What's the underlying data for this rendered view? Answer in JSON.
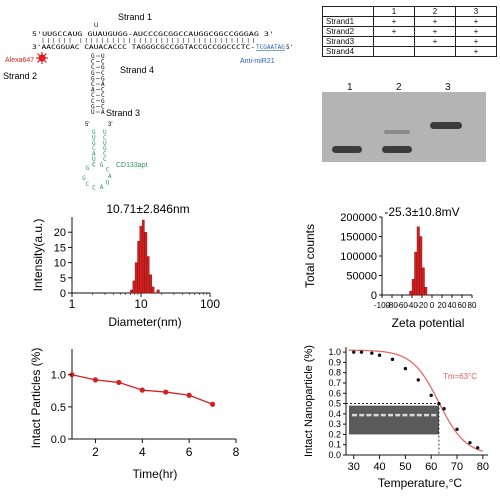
{
  "structure": {
    "strand1_label": "Strand 1",
    "strand2_label": "Strand 2",
    "strand3_label": "Strand 3",
    "strand4_label": "Strand 4",
    "top_seq": "5'UUGCCAUG  GUAUGUGG-AUCCCGCGGCCAUGGCGGCCGGGAG 3'",
    "bottom_seq": "3'AACGGUAC  CAUACACCC TAGGGCGCCGGTACCGCCGGCCCTC-",
    "bottom_link": "TCGAATAG",
    "bottom_end": " 5'",
    "loop_u": "U",
    "dye": "Alexa647",
    "anti_label": "Anti-miR21",
    "aptamer_label": "CD133apt",
    "stem_left": [
      "G",
      "C",
      "C",
      "G",
      "G",
      "C",
      "A",
      "C",
      "C",
      "G",
      "U"
    ],
    "stem_right": [
      "U",
      "C",
      "G",
      "C",
      "G",
      "A",
      "C",
      "C",
      "G",
      "C",
      "A"
    ],
    "apt_loop": [
      "G",
      "C",
      "C",
      "A",
      "U",
      "A",
      "C",
      "G",
      "C",
      "G"
    ],
    "apt_left": [
      "G",
      "U",
      "G",
      "C",
      "A",
      "U",
      "C"
    ],
    "apt_right": [
      "U",
      "C",
      "U",
      "G",
      "C",
      "C"
    ],
    "five_prime": "5'",
    "three_prime": "3'"
  },
  "assembly_table": {
    "headers": [
      "",
      "1",
      "2",
      "3"
    ],
    "rows": [
      {
        "label": "Strand1",
        "cells": [
          "+",
          "+",
          "+"
        ]
      },
      {
        "label": "Strand2",
        "cells": [
          "+",
          "+",
          "+"
        ]
      },
      {
        "label": "Strand3",
        "cells": [
          "",
          "+",
          "+"
        ]
      },
      {
        "label": "Strand4",
        "cells": [
          "",
          "",
          "+"
        ]
      }
    ]
  },
  "gel": {
    "lanes": [
      "1",
      "2",
      "3"
    ]
  },
  "chart_data": [
    {
      "type": "bar",
      "title": "10.71±2.846nm",
      "xlabel": "Diameter(nm)",
      "ylabel": "Intensity(a.u.)",
      "xscale": "log",
      "xlim": [
        1,
        100
      ],
      "ylim": [
        0,
        25
      ],
      "xticks": [
        "1",
        "10",
        "100"
      ],
      "yticks": [
        "0",
        "5",
        "10",
        "15",
        "20"
      ],
      "bars": [
        {
          "x0": 7.0,
          "x1": 7.6,
          "value": 1
        },
        {
          "x0": 7.6,
          "x1": 8.2,
          "value": 4
        },
        {
          "x0": 8.2,
          "x1": 8.9,
          "value": 10
        },
        {
          "x0": 8.9,
          "x1": 9.6,
          "value": 17
        },
        {
          "x0": 9.6,
          "x1": 10.4,
          "value": 22
        },
        {
          "x0": 10.4,
          "x1": 11.2,
          "value": 24
        },
        {
          "x0": 11.2,
          "x1": 12.2,
          "value": 20
        },
        {
          "x0": 12.2,
          "x1": 13.2,
          "value": 12
        },
        {
          "x0": 13.2,
          "x1": 14.3,
          "value": 6
        },
        {
          "x0": 14.3,
          "x1": 15.5,
          "value": 2
        },
        {
          "x0": 17.0,
          "x1": 18.5,
          "value": 1
        }
      ],
      "bar_color": "#d42020"
    },
    {
      "type": "bar",
      "title": "-25.3±10.8mV",
      "xlabel": "Zeta potential",
      "ylabel": "Total counts",
      "xlim": [
        -100,
        80
      ],
      "ylim": [
        0,
        200000
      ],
      "xticks": [
        "-100",
        "-80",
        "-60",
        "-40",
        "-20",
        "0",
        "20",
        "40",
        "60",
        "80"
      ],
      "yticks": [
        "0",
        "50000",
        "100000",
        "150000",
        "200000"
      ],
      "bars": [
        {
          "x0": -45,
          "x1": -40,
          "value": 10000
        },
        {
          "x0": -40,
          "x1": -35,
          "value": 40000
        },
        {
          "x0": -35,
          "x1": -30,
          "value": 110000
        },
        {
          "x0": -30,
          "x1": -25,
          "value": 175000
        },
        {
          "x0": -25,
          "x1": -20,
          "value": 150000
        },
        {
          "x0": -20,
          "x1": -15,
          "value": 70000
        },
        {
          "x0": -15,
          "x1": -10,
          "value": 20000
        }
      ],
      "bar_color": "#d42020"
    },
    {
      "type": "line",
      "xlabel": "Time(hr)",
      "ylabel": "Intact Particles (%)",
      "xlim": [
        1,
        8
      ],
      "ylim": [
        0,
        1.4
      ],
      "xticks": [
        "2",
        "4",
        "6",
        "8"
      ],
      "yticks": [
        "0.0",
        "0.5",
        "1.0"
      ],
      "x": [
        1,
        2,
        3,
        4,
        5,
        6,
        7
      ],
      "y": [
        1.0,
        0.92,
        0.88,
        0.76,
        0.73,
        0.68,
        0.54
      ],
      "color": "#d42020"
    },
    {
      "type": "scatter",
      "xlabel": "Temperature,°C",
      "ylabel": "Intact Nanoparticle (%)",
      "xlim": [
        27,
        82
      ],
      "ylim": [
        0.0,
        1.05
      ],
      "xticks": [
        "30",
        "40",
        "50",
        "60",
        "70",
        "80"
      ],
      "yticks": [
        "0.0",
        "0.1",
        "0.2",
        "0.3",
        "0.4",
        "0.5",
        "0.6",
        "0.7",
        "0.8",
        "0.9",
        "1.0"
      ],
      "x": [
        30,
        33,
        37,
        40,
        45,
        50,
        55,
        60,
        63,
        65,
        70,
        75,
        78
      ],
      "y": [
        1.0,
        1.0,
        0.99,
        0.97,
        0.93,
        0.84,
        0.73,
        0.58,
        0.5,
        0.45,
        0.25,
        0.12,
        0.07
      ],
      "fit_color": "#e06060",
      "tm_label": "Tm=63°C",
      "tm_value": 63,
      "half_value": 0.5
    }
  ]
}
